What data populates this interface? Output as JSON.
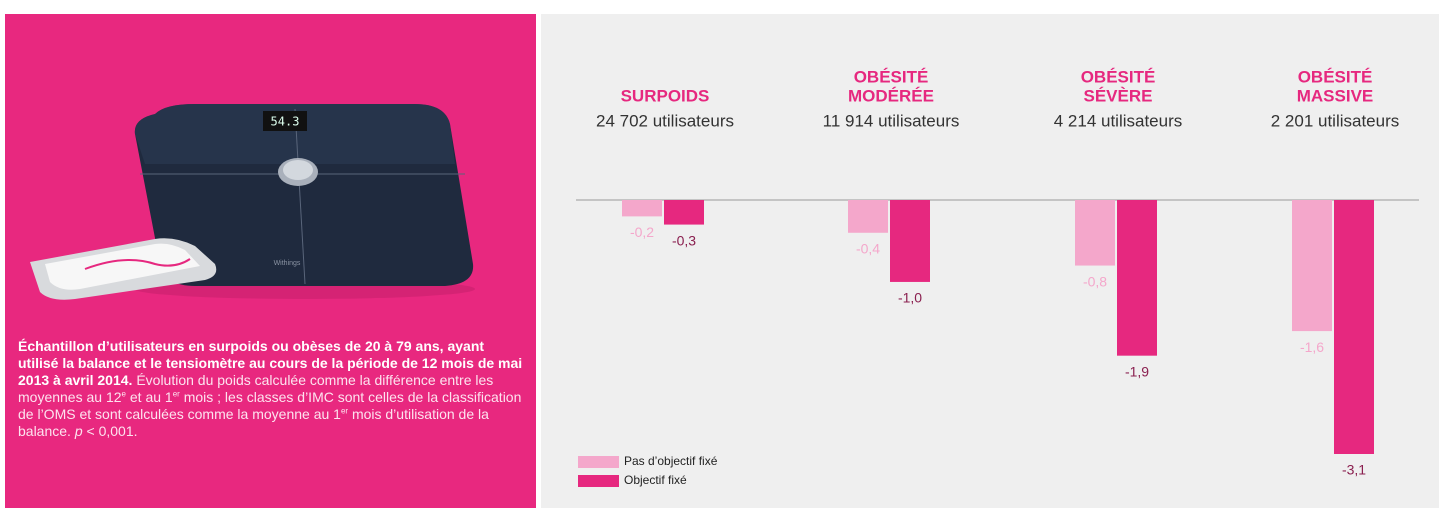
{
  "panel": {
    "image": {
      "display": "54.3",
      "brand": "Withings"
    },
    "caption": [
      {
        "text": "Échantillon d’utilisateurs en surpoids ou obèses de 20 à 79 ans, ayant utilisé la balance et le tensiomètre au cours de la période de 12 mois de mai 2013 à avril 2014.",
        "style": "bold"
      },
      {
        "text": " Évolution du poids calculée comme la différence entre les moyennes au 12",
        "style": "normal"
      },
      {
        "text": "e",
        "style": "sup"
      },
      {
        "text": " et au 1",
        "style": "normal"
      },
      {
        "text": "er",
        "style": "sup"
      },
      {
        "text": " mois ; les classes d’IMC sont celles de la classification de l’OMS et sont calculées comme la moyenne au 1",
        "style": "normal"
      },
      {
        "text": "er",
        "style": "sup"
      },
      {
        "text": " mois d’utilisation de la balance. ",
        "style": "normal"
      },
      {
        "text": "p",
        "style": "italic"
      },
      {
        "text": " < 0,001.",
        "style": "normal"
      }
    ]
  },
  "chart_data": {
    "type": "bar",
    "categories": [
      [
        "SURPOIDS"
      ],
      [
        "OBÉSITÉ",
        "MODÉRÉE"
      ],
      [
        "OBÉSITÉ",
        "SÉVÈRE"
      ],
      [
        "OBÉSITÉ",
        "MASSIVE"
      ]
    ],
    "subtitles": [
      "24 702 utilisateurs",
      "11 914 utilisateurs",
      "4 214 utilisateurs",
      "2 201 utilisateurs"
    ],
    "series": [
      {
        "name": "Pas d’objectif fixé",
        "color": "#f4a7cb",
        "label_color": "#f4a7cb",
        "values": [
          -0.2,
          -0.4,
          -0.8,
          -1.6
        ],
        "value_labels": [
          "-0,2",
          "-0,4",
          "-0,8",
          "-1,6"
        ]
      },
      {
        "name": "Objectif fixé",
        "color": "#e6287f",
        "label_color": "#8a1f4f",
        "values": [
          -0.3,
          -1.0,
          -1.9,
          -3.1
        ],
        "value_labels": [
          "-0,3",
          "-1,0",
          "-1,9",
          "-3,1"
        ]
      }
    ],
    "ylim": [
      -3.1,
      0
    ],
    "legend": "bottom-left"
  }
}
